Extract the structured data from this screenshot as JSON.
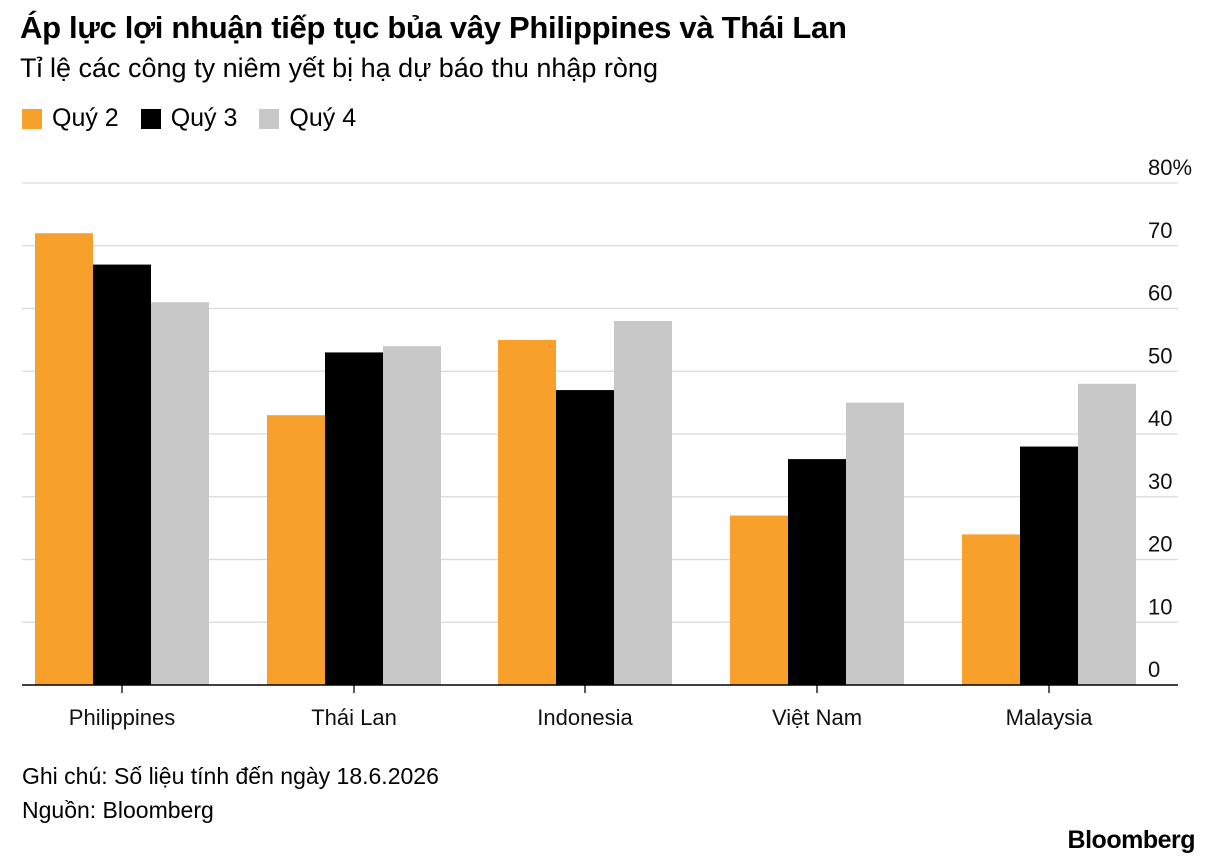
{
  "header": {
    "title": "Áp lực lợi nhuận tiếp tục bủa vây Philippines và Thái Lan",
    "subtitle": "Tỉ lệ các công ty niêm yết bị hạ dự báo thu nhập ròng"
  },
  "legend": [
    {
      "label": "Quý 2",
      "color": "#f7a12c"
    },
    {
      "label": "Quý 3",
      "color": "#000000"
    },
    {
      "label": "Quý 4",
      "color": "#c8c8c8"
    }
  ],
  "chart_data": {
    "type": "bar",
    "title": "Áp lực lợi nhuận tiếp tục bủa vây Philippines và Thái Lan",
    "subtitle": "Tỉ lệ các công ty niêm yết bị hạ dự báo thu nhập ròng",
    "categories": [
      "Philippines",
      "Thái Lan",
      "Indonesia",
      "Việt Nam",
      "Malaysia"
    ],
    "series": [
      {
        "name": "Quý 2",
        "color": "#f7a12c",
        "values": [
          72,
          43,
          55,
          27,
          24
        ]
      },
      {
        "name": "Quý 3",
        "color": "#000000",
        "values": [
          67,
          53,
          47,
          36,
          38
        ]
      },
      {
        "name": "Quý 4",
        "color": "#c8c8c8",
        "values": [
          61,
          54,
          58,
          45,
          48
        ]
      }
    ],
    "ylim": [
      0,
      80
    ],
    "yticks": [
      0,
      10,
      20,
      30,
      40,
      50,
      60,
      70,
      80
    ],
    "ytick_labels": [
      "0",
      "10",
      "20",
      "30",
      "40",
      "50",
      "60",
      "70",
      "80%"
    ],
    "y_axis_position": "right",
    "grid": true,
    "legend_position": "top-left"
  },
  "footer": {
    "note": "Ghi chú: Số liệu tính đến ngày 18.6.2026",
    "source": "Nguồn: Bloomberg",
    "brand": "Bloomberg"
  }
}
